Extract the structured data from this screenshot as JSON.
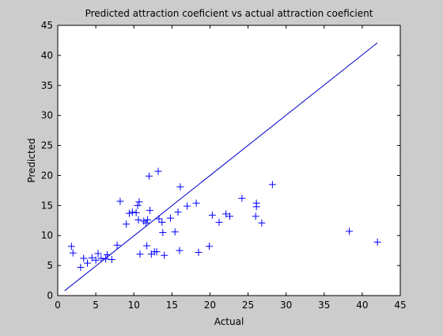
{
  "chart_data": {
    "type": "scatter",
    "title": "Predicted attraction coeficient vs actual attraction coeficient",
    "xlabel": "Actual",
    "ylabel": "Predicted",
    "xlim": [
      0,
      45
    ],
    "ylim": [
      0,
      45
    ],
    "xticks": [
      "0",
      "5",
      "10",
      "15",
      "20",
      "25",
      "30",
      "35",
      "40",
      "45"
    ],
    "yticks": [
      "0",
      "5",
      "10",
      "15",
      "20",
      "25",
      "30",
      "35",
      "40",
      "45"
    ],
    "grid": false,
    "legend": "none",
    "series": [
      {
        "marker": "+",
        "color": "#0000ff",
        "points": [
          [
            1.8,
            8.2
          ],
          [
            2.0,
            7.1
          ],
          [
            3.0,
            4.7
          ],
          [
            3.4,
            6.2
          ],
          [
            3.9,
            5.4
          ],
          [
            4.5,
            6.3
          ],
          [
            5.0,
            5.9
          ],
          [
            5.3,
            7.0
          ],
          [
            5.7,
            6.2
          ],
          [
            6.3,
            6.1
          ],
          [
            6.5,
            6.8
          ],
          [
            7.1,
            6.0
          ],
          [
            7.8,
            8.4
          ],
          [
            8.2,
            15.7
          ],
          [
            9.0,
            11.9
          ],
          [
            9.4,
            13.7
          ],
          [
            9.8,
            13.9
          ],
          [
            10.3,
            13.8
          ],
          [
            10.5,
            15.0
          ],
          [
            10.7,
            15.6
          ],
          [
            10.6,
            12.6
          ],
          [
            10.8,
            6.9
          ],
          [
            11.3,
            12.4
          ],
          [
            11.6,
            12.1
          ],
          [
            11.8,
            12.6
          ],
          [
            11.7,
            8.3
          ],
          [
            12.0,
            19.9
          ],
          [
            12.1,
            14.2
          ],
          [
            12.3,
            6.9
          ],
          [
            12.7,
            7.3
          ],
          [
            13.0,
            7.3
          ],
          [
            13.2,
            20.7
          ],
          [
            13.3,
            12.8
          ],
          [
            13.7,
            12.2
          ],
          [
            13.8,
            10.5
          ],
          [
            14.0,
            6.7
          ],
          [
            14.8,
            12.9
          ],
          [
            15.4,
            10.6
          ],
          [
            15.8,
            13.9
          ],
          [
            16.0,
            7.5
          ],
          [
            16.1,
            18.1
          ],
          [
            17.0,
            14.9
          ],
          [
            18.2,
            15.4
          ],
          [
            18.5,
            7.2
          ],
          [
            19.9,
            8.2
          ],
          [
            20.3,
            13.4
          ],
          [
            21.2,
            12.2
          ],
          [
            22.1,
            13.6
          ],
          [
            22.6,
            13.2
          ],
          [
            24.2,
            16.2
          ],
          [
            26.0,
            13.2
          ],
          [
            26.1,
            14.8
          ],
          [
            26.1,
            15.4
          ],
          [
            26.8,
            12.1
          ],
          [
            28.2,
            18.5
          ],
          [
            38.3,
            10.7
          ],
          [
            42.0,
            8.9
          ]
        ]
      }
    ],
    "line": {
      "color": "#0000cc",
      "points": [
        [
          0.9,
          0.8
        ],
        [
          42.0,
          42.1
        ]
      ]
    }
  }
}
